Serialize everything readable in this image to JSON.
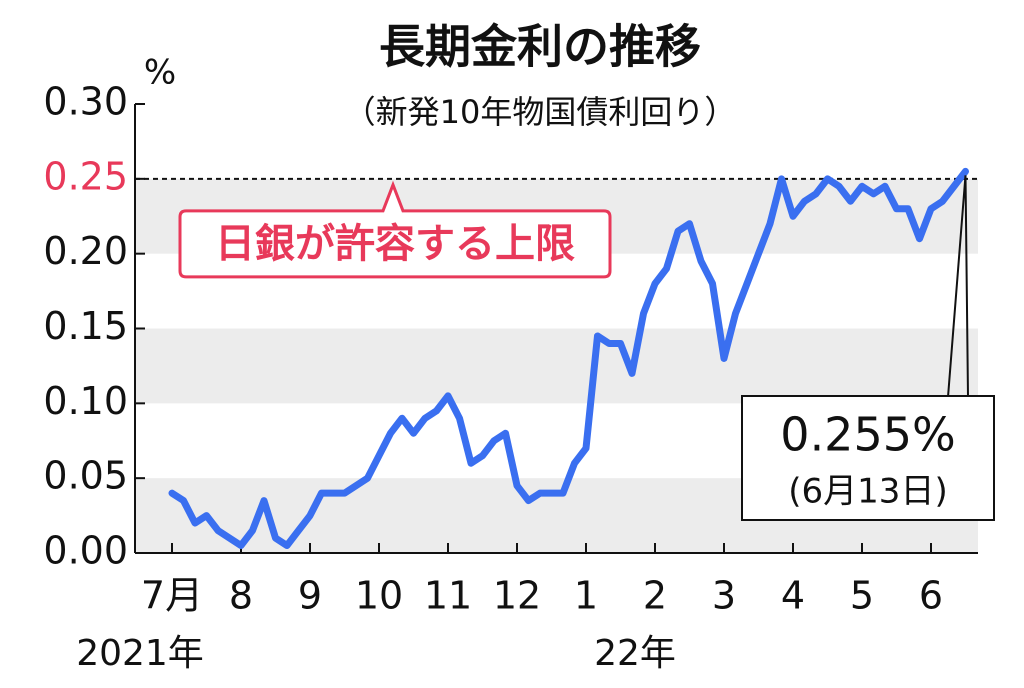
{
  "chart_data": {
    "type": "line",
    "title": "長期金利の推移",
    "subtitle": "（新発10年物国債利回り）",
    "y_unit": "%",
    "categories": [
      "7月",
      null,
      null,
      null,
      null,
      null,
      "8",
      null,
      null,
      null,
      null,
      null,
      "9",
      null,
      null,
      null,
      null,
      null,
      "10",
      null,
      null,
      null,
      null,
      null,
      "11",
      null,
      null,
      null,
      null,
      null,
      "12",
      null,
      null,
      null,
      null,
      null,
      "1",
      null,
      null,
      null,
      null,
      null,
      "2",
      null,
      null,
      null,
      null,
      null,
      "3",
      null,
      null,
      null,
      null,
      null,
      "4",
      null,
      null,
      null,
      null,
      null,
      "5",
      null,
      null,
      null,
      null,
      null,
      "6",
      null,
      null,
      null
    ],
    "year_labels": [
      "2021年",
      "22年"
    ],
    "series": [
      {
        "name": "新発10年物国債利回り",
        "color": "#3a6ff0",
        "values": [
          0.04,
          0.035,
          0.02,
          0.025,
          0.015,
          0.01,
          0.005,
          0.015,
          0.035,
          0.01,
          0.005,
          0.015,
          0.025,
          0.04,
          0.04,
          0.04,
          0.045,
          0.05,
          0.065,
          0.08,
          0.09,
          0.08,
          0.09,
          0.095,
          0.105,
          0.09,
          0.06,
          0.065,
          0.075,
          0.08,
          0.045,
          0.035,
          0.04,
          0.04,
          0.04,
          0.06,
          0.07,
          0.145,
          0.14,
          0.14,
          0.12,
          0.16,
          0.18,
          0.19,
          0.215,
          0.22,
          0.195,
          0.18,
          0.13,
          0.16,
          0.18,
          0.2,
          0.22,
          0.25,
          0.225,
          0.235,
          0.24,
          0.25,
          0.245,
          0.235,
          0.245,
          0.24,
          0.245,
          0.23,
          0.23,
          0.21,
          0.23,
          0.235,
          0.245,
          0.255
        ]
      }
    ],
    "ylim": [
      0,
      0.3
    ],
    "yticks": [
      {
        "value": 0,
        "label": "0.00"
      },
      {
        "value": 0.05,
        "label": "0.05"
      },
      {
        "value": 0.1,
        "label": "0.10"
      },
      {
        "value": 0.15,
        "label": "0.15"
      },
      {
        "value": 0.2,
        "label": "0.20"
      },
      {
        "value": 0.25,
        "label": "0.25"
      },
      {
        "value": 0.3,
        "label": "0.30"
      }
    ],
    "grid_bands": true,
    "limit": {
      "value": 0.25,
      "label": "日銀が許容する上限",
      "color": "#e8395a"
    },
    "annotation": {
      "value": "0.255%",
      "date": "(6月13日)"
    }
  }
}
